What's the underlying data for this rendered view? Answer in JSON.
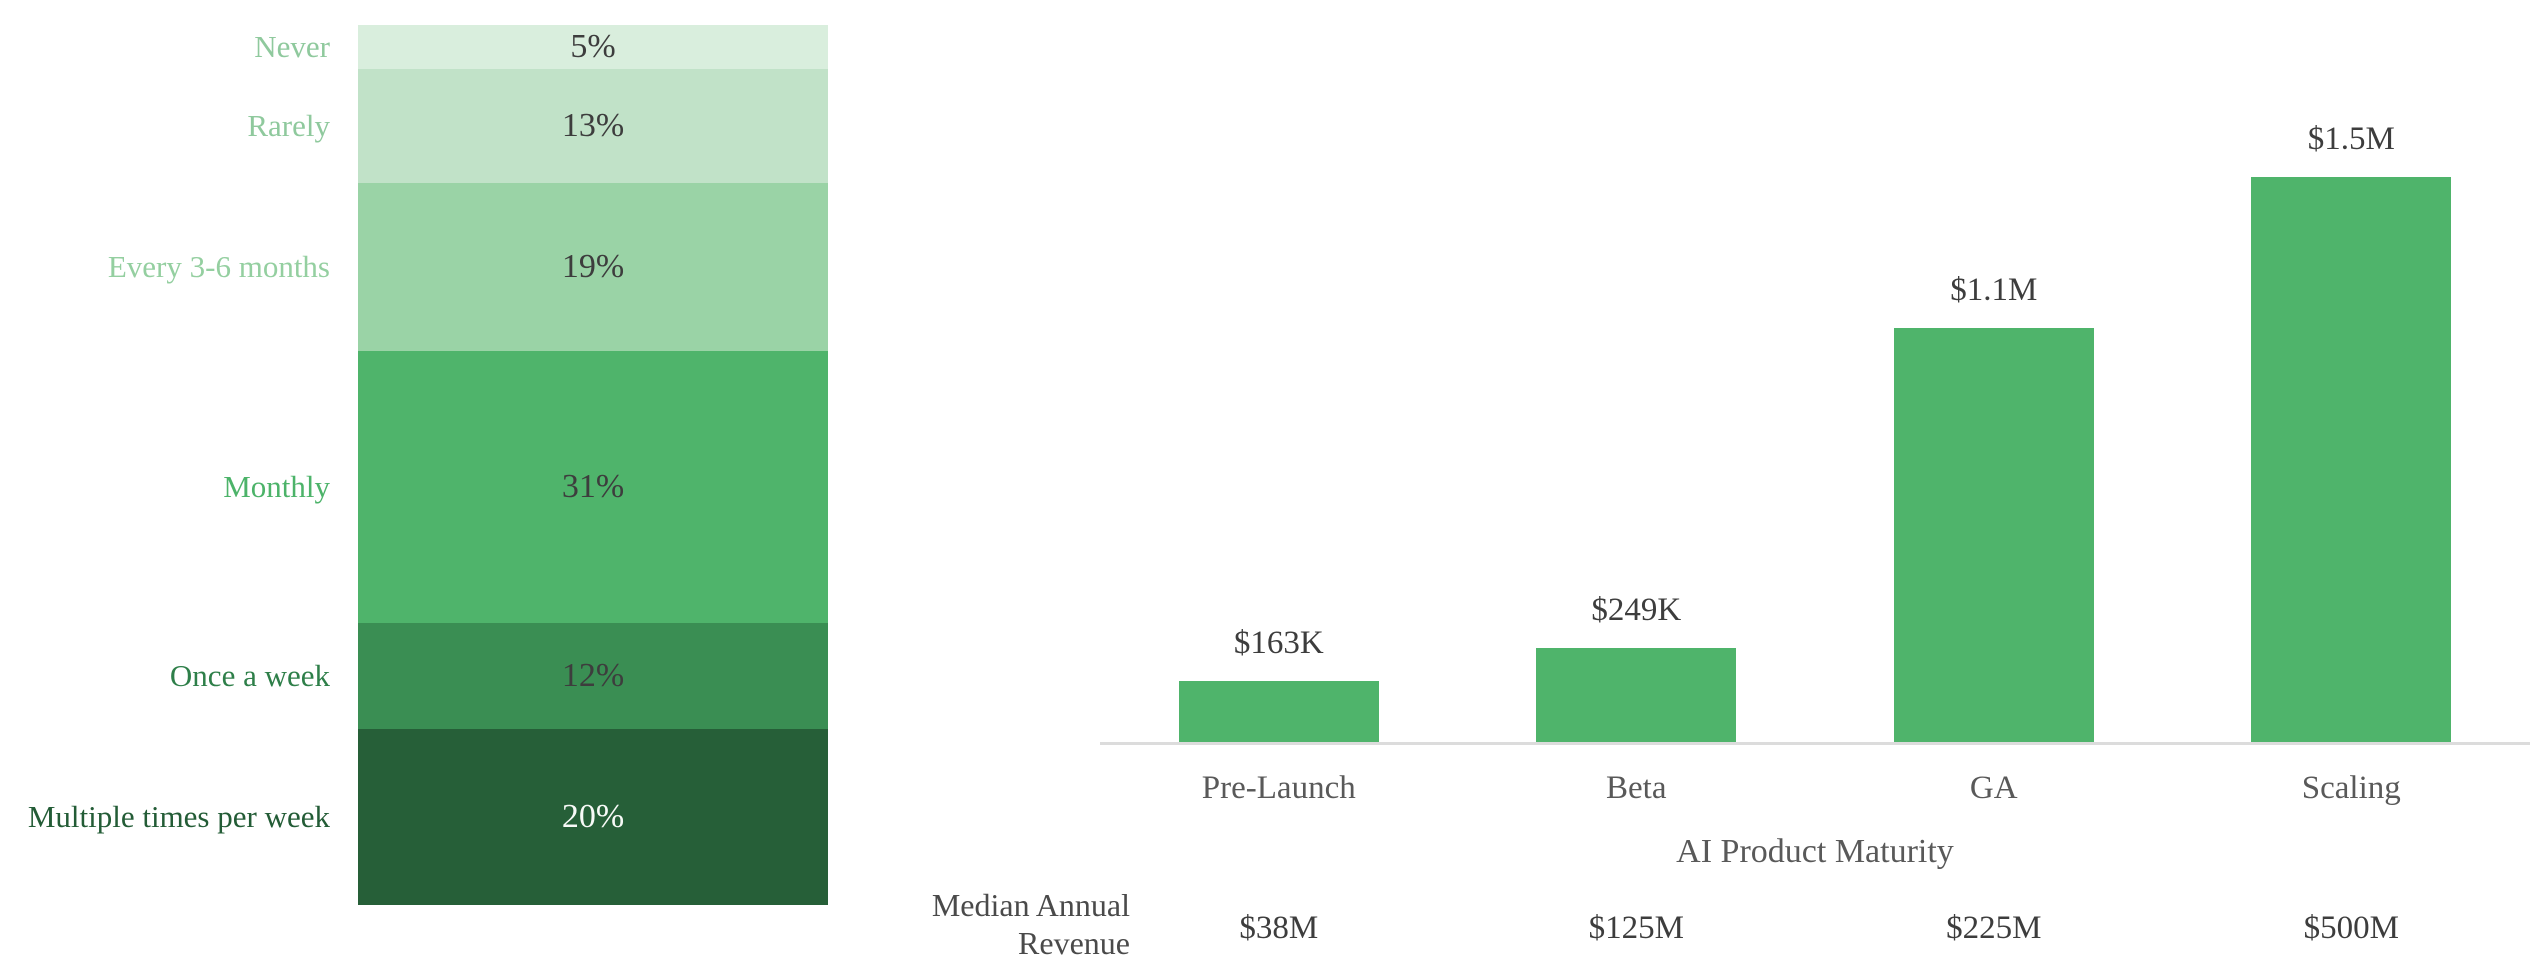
{
  "colors": {
    "background": "#ffffff",
    "axis_line": "#dcdcdc",
    "bar_fill": "#4fb46b",
    "value_label_color": "#3d3d3d",
    "category_label_color": "#595959",
    "row_label_color": "#4a4a4a",
    "pct_label_dark": "#3d3d3d",
    "pct_label_light": "#f7faf7"
  },
  "chart_data": [
    {
      "type": "bar",
      "subtype": "stacked-percentage-column",
      "title": "",
      "categories": [
        "Never",
        "Rarely",
        "Every 3-6 months",
        "Monthly",
        "Once a week",
        "Multiple times per week"
      ],
      "values": [
        5,
        13,
        19,
        31,
        12,
        20
      ],
      "value_labels": [
        "5%",
        "13%",
        "19%",
        "31%",
        "12%",
        "20%"
      ],
      "segment_fills": [
        "#d9eedd",
        "#c1e2c8",
        "#9ad3a6",
        "#4fb46b",
        "#3a8e53",
        "#265f38"
      ],
      "category_label_colors": [
        "#8fc99d",
        "#8fc99d",
        "#94cfa0",
        "#4cb369",
        "#2e7f49",
        "#235c36"
      ],
      "value_label_colors": [
        "#3d3d3d",
        "#3d3d3d",
        "#3d3d3d",
        "#3d3d3d",
        "#3d3d3d",
        "#f7faf7"
      ],
      "ylim": [
        0,
        100
      ],
      "grid": false,
      "legend": false
    },
    {
      "type": "bar",
      "title": "",
      "categories": [
        "Pre-Launch",
        "Beta",
        "GA",
        "Scaling"
      ],
      "values": [
        163000,
        249000,
        1100000,
        1500000
      ],
      "value_labels": [
        "$163K",
        "$249K",
        "$1.1M",
        "$1.5M"
      ],
      "xlabel": "AI Product Maturity",
      "ylabel": "",
      "ylim": [
        0,
        1500000
      ],
      "grid": false,
      "legend": false,
      "table_row": {
        "label": "Median Annual Revenue",
        "values": [
          "$38M",
          "$125M",
          "$225M",
          "$500M"
        ]
      }
    }
  ]
}
